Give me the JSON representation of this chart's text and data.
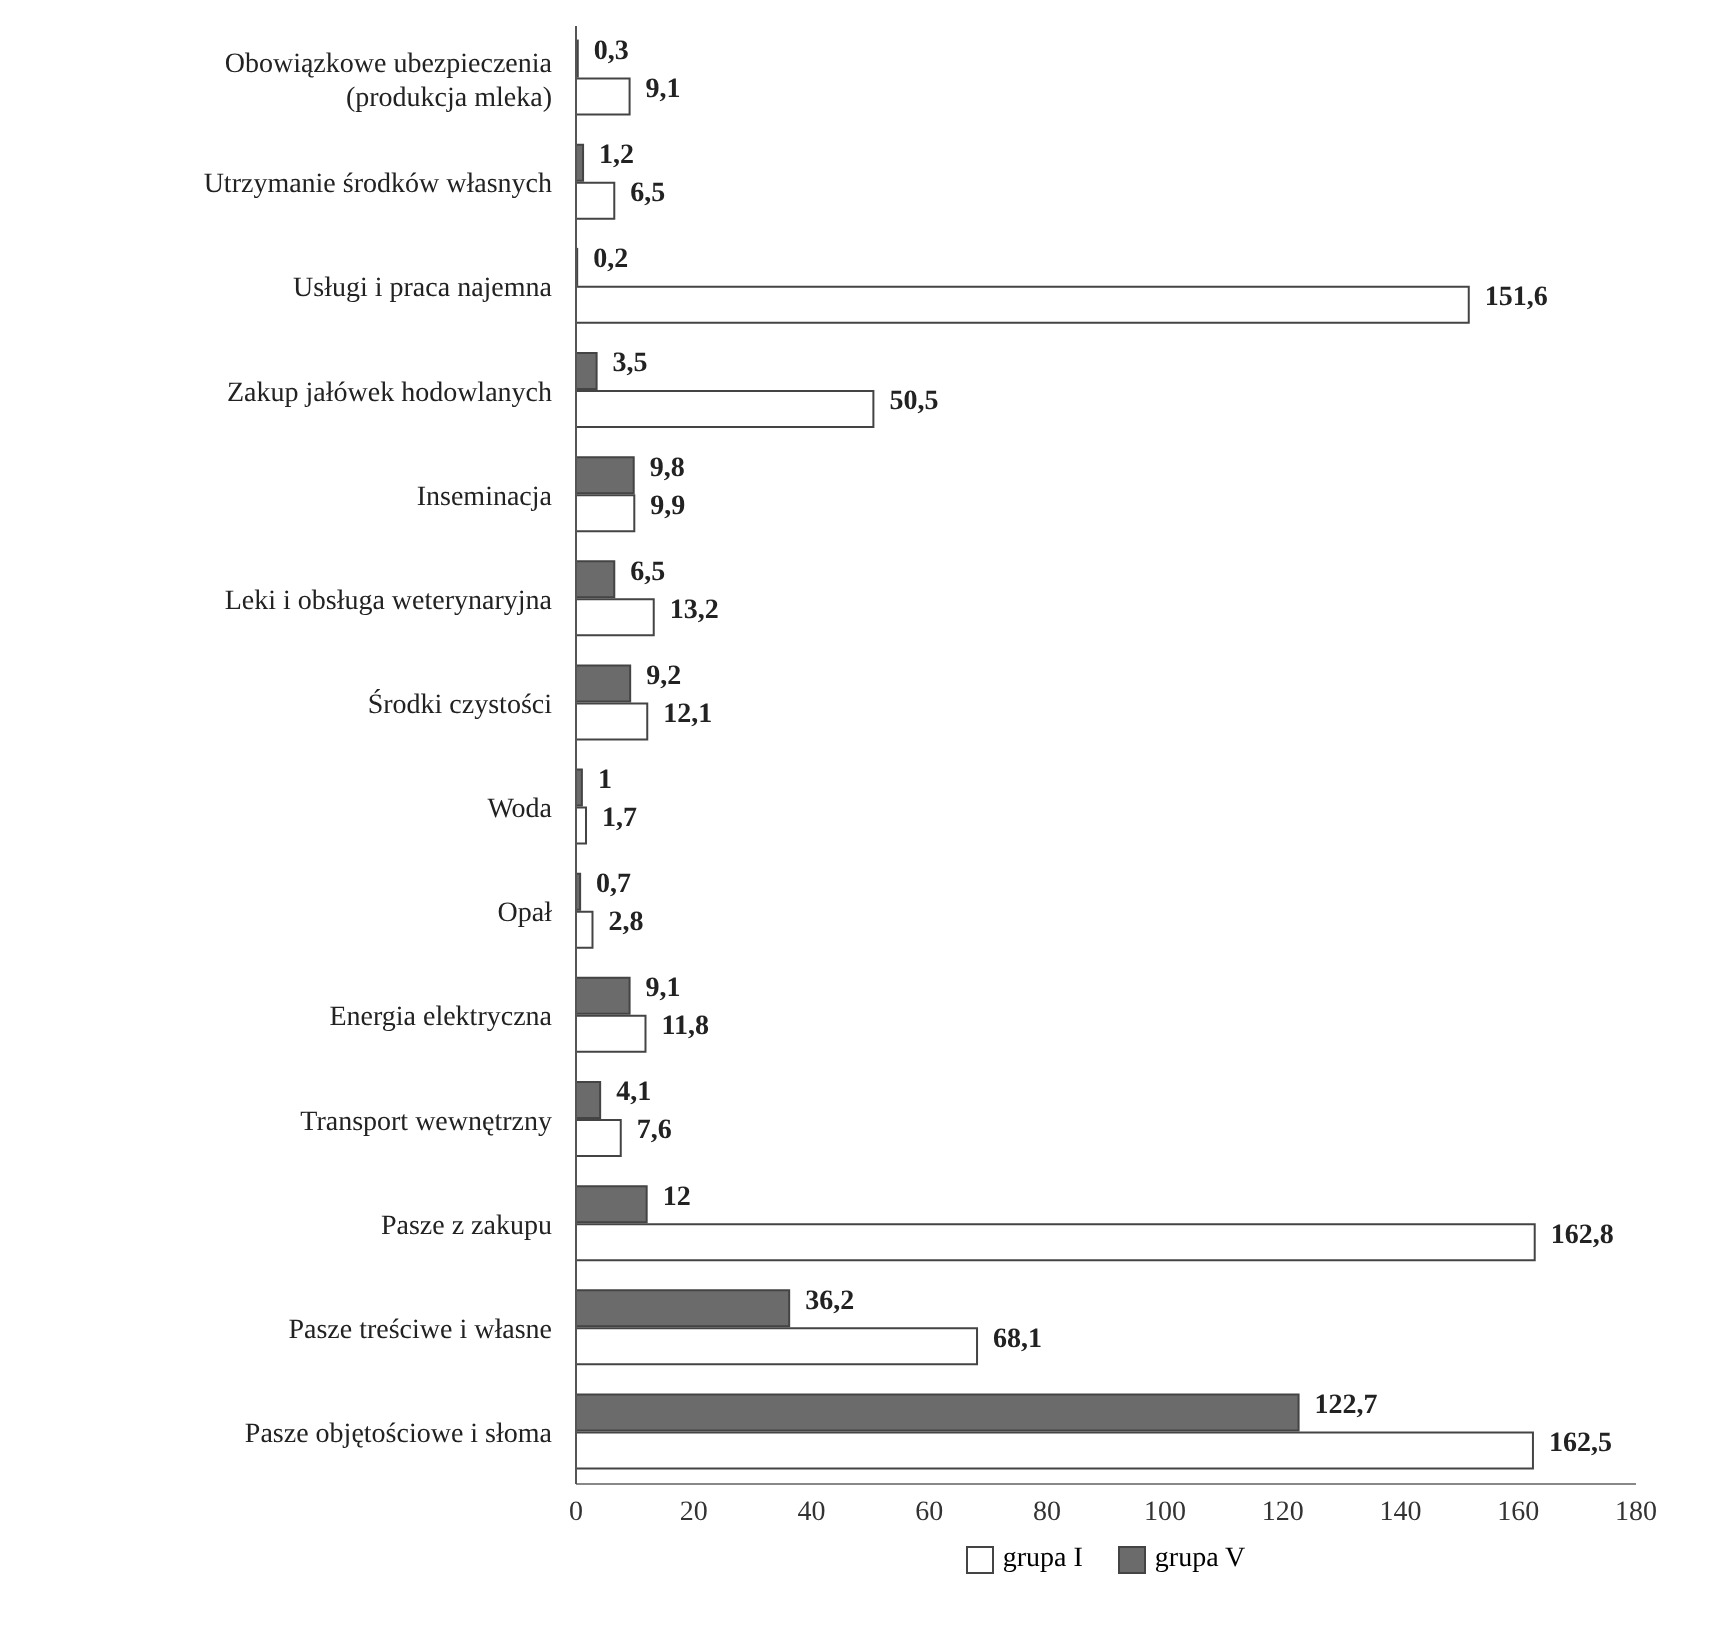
{
  "chart_data": {
    "type": "bar",
    "orientation": "horizontal",
    "categories": [
      "Obowiązkowe ubezpieczenia\n(produkcja mleka)",
      "Utrzymanie środków własnych",
      "Usługi i praca najemna",
      "Zakup jałówek hodowlanych",
      "Inseminacja",
      "Leki i obsługa weterynaryjna",
      "Środki czystości",
      "Woda",
      "Opał",
      "Energia elektryczna",
      "Transport wewnętrzny",
      "Pasze z zakupu",
      "Pasze treściwe i własne",
      "Pasze objętościowe i słoma"
    ],
    "series": [
      {
        "name": "grupa I",
        "color": "#ffffff",
        "values": [
          9.1,
          6.5,
          151.6,
          50.5,
          9.9,
          13.2,
          12.1,
          1.7,
          2.8,
          11.8,
          7.6,
          162.8,
          68.1,
          162.5
        ],
        "value_labels": [
          "9,1",
          "6,5",
          "151,6",
          "50,5",
          "9,9",
          "13,2",
          "12,1",
          "1,7",
          "2,8",
          "11,8",
          "7,6",
          "162,8",
          "68,1",
          "162,5"
        ]
      },
      {
        "name": "grupa V",
        "color": "#6b6b6b",
        "values": [
          0.3,
          1.2,
          0.2,
          3.5,
          9.8,
          6.5,
          9.2,
          1,
          0.7,
          9.1,
          4.1,
          12,
          36.2,
          122.7
        ],
        "value_labels": [
          "0,3",
          "1,2",
          "0,2",
          "3,5",
          "9,8",
          "6,5",
          "9,2",
          "1",
          "0,7",
          "9,1",
          "4,1",
          "12",
          "36,2",
          "122,7"
        ]
      }
    ],
    "xlim": [
      0,
      180
    ],
    "xticks": [
      0,
      20,
      40,
      60,
      80,
      100,
      120,
      140,
      160,
      180
    ],
    "grid": false,
    "legend": "bottom"
  }
}
